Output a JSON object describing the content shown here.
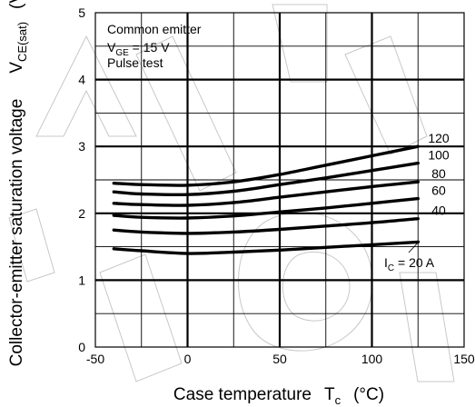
{
  "chart_data": {
    "type": "line",
    "title": "",
    "ylabel": "Collector-emitter saturation voltage",
    "ylabel_symbol_main": "V",
    "ylabel_symbol_sub": "CE(sat)",
    "ylabel_unit": "(V)",
    "xlabel": "Case temperature",
    "xlabel_symbol_main": "T",
    "xlabel_symbol_sub": "c",
    "xlabel_unit": "(°C)",
    "xlim": [
      -50,
      150
    ],
    "ylim": [
      0,
      5
    ],
    "x_ticks": [
      -50,
      0,
      50,
      100,
      150
    ],
    "x_tick_labels": [
      "-50",
      "0",
      "50",
      "100",
      "150"
    ],
    "y_ticks": [
      0,
      1,
      2,
      3,
      4,
      5
    ],
    "y_tick_labels": [
      "0",
      "1",
      "2",
      "3",
      "4",
      "5"
    ],
    "grid": true,
    "conditions": {
      "line1": "Common emitter",
      "line2_main": "V",
      "line2_sub": "GE",
      "line2_rest": " = 15 V",
      "line3": "Pulse test"
    },
    "series": [
      {
        "name": "20 A",
        "label_main": "I",
        "label_sub": "C",
        "label_rest": " = 20 A",
        "x": [
          -40,
          -25,
          0,
          25,
          50,
          75,
          100,
          125
        ],
        "y": [
          1.47,
          1.44,
          1.4,
          1.42,
          1.45,
          1.49,
          1.53,
          1.57
        ]
      },
      {
        "name": "40",
        "label": "40",
        "x": [
          -40,
          -25,
          0,
          25,
          50,
          75,
          100,
          125
        ],
        "y": [
          1.75,
          1.72,
          1.7,
          1.72,
          1.76,
          1.81,
          1.86,
          1.92
        ]
      },
      {
        "name": "60",
        "label": "60",
        "x": [
          -40,
          -25,
          0,
          25,
          50,
          75,
          100,
          125
        ],
        "y": [
          1.97,
          1.94,
          1.93,
          1.96,
          2.02,
          2.08,
          2.15,
          2.22
        ]
      },
      {
        "name": "80",
        "label": "80",
        "x": [
          -40,
          -25,
          0,
          25,
          50,
          75,
          100,
          125
        ],
        "y": [
          2.15,
          2.13,
          2.12,
          2.16,
          2.24,
          2.32,
          2.4,
          2.47
        ]
      },
      {
        "name": "100",
        "label": "100",
        "x": [
          -40,
          -25,
          0,
          25,
          50,
          75,
          100,
          125
        ],
        "y": [
          2.32,
          2.29,
          2.28,
          2.33,
          2.43,
          2.53,
          2.64,
          2.75
        ]
      },
      {
        "name": "120",
        "label": "120",
        "x": [
          -40,
          -25,
          0,
          25,
          50,
          75,
          100,
          125
        ],
        "y": [
          2.45,
          2.43,
          2.42,
          2.47,
          2.58,
          2.72,
          2.86,
          3.0
        ]
      }
    ]
  }
}
